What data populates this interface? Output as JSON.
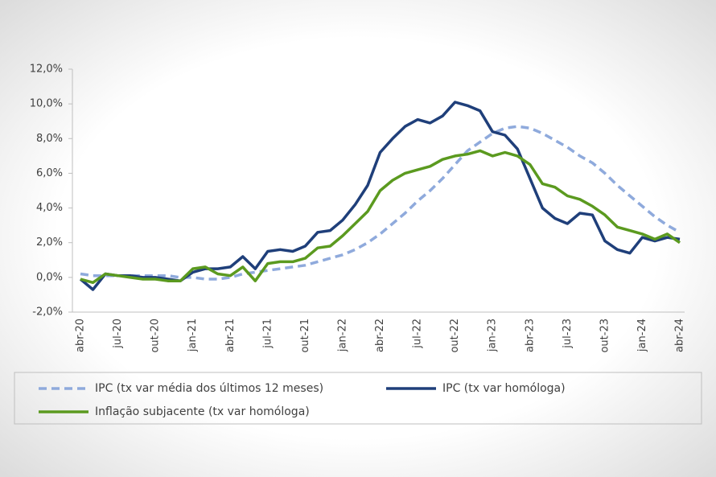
{
  "chart_data": {
    "type": "line",
    "categories": [
      "abr-20",
      null,
      null,
      "jul-20",
      null,
      null,
      "out-20",
      null,
      null,
      "jan-21",
      null,
      null,
      "abr-21",
      null,
      null,
      "jul-21",
      null,
      null,
      "out-21",
      null,
      null,
      "jan-22",
      null,
      null,
      "abr-22",
      null,
      null,
      "jul-22",
      null,
      null,
      "out-22",
      null,
      null,
      "jan-23",
      null,
      null,
      "abr-23",
      null,
      null,
      "jul-23",
      null,
      null,
      "out-23",
      null,
      null,
      "jan-24",
      null,
      null,
      "abr-24"
    ],
    "series": [
      {
        "name": "IPC (tx var média dos últimos 12 meses)",
        "color": "#8faadc",
        "dashed": true,
        "values": [
          0.2,
          0.1,
          0.1,
          0.1,
          0.1,
          0.1,
          0.1,
          0.1,
          0.0,
          0.0,
          -0.1,
          -0.1,
          0.0,
          0.2,
          0.3,
          0.4,
          0.5,
          0.6,
          0.7,
          0.9,
          1.1,
          1.3,
          1.6,
          2.0,
          2.5,
          3.1,
          3.7,
          4.4,
          5.0,
          5.7,
          6.5,
          7.3,
          7.8,
          8.3,
          8.6,
          8.7,
          8.6,
          8.3,
          7.9,
          7.5,
          7.0,
          6.6,
          6.0,
          5.3,
          4.7,
          4.1,
          3.5,
          3.0,
          2.6
        ]
      },
      {
        "name": "IPC (tx var homóloga)",
        "color": "#1f3f7a",
        "dashed": false,
        "values": [
          -0.1,
          -0.7,
          0.2,
          0.1,
          0.1,
          0.0,
          0.0,
          -0.1,
          -0.2,
          0.3,
          0.5,
          0.5,
          0.6,
          1.2,
          0.5,
          1.5,
          1.6,
          1.5,
          1.8,
          2.6,
          2.7,
          3.3,
          4.2,
          5.3,
          7.2,
          8.0,
          8.7,
          9.1,
          8.9,
          9.3,
          10.1,
          9.9,
          9.6,
          8.4,
          8.2,
          7.4,
          5.7,
          4.0,
          3.4,
          3.1,
          3.7,
          3.6,
          2.1,
          1.6,
          1.4,
          2.3,
          2.1,
          2.3,
          2.2
        ]
      },
      {
        "name": "Inflação subjacente (tx var homóloga)",
        "color": "#5b9a1f",
        "dashed": false,
        "values": [
          -0.1,
          -0.3,
          0.2,
          0.1,
          0.0,
          -0.1,
          -0.1,
          -0.2,
          -0.2,
          0.5,
          0.6,
          0.2,
          0.1,
          0.6,
          -0.2,
          0.8,
          0.9,
          0.9,
          1.1,
          1.7,
          1.8,
          2.4,
          3.1,
          3.8,
          5.0,
          5.6,
          6.0,
          6.2,
          6.4,
          6.8,
          7.0,
          7.1,
          7.3,
          7.0,
          7.2,
          7.0,
          6.5,
          5.4,
          5.2,
          4.7,
          4.5,
          4.1,
          3.6,
          2.9,
          2.7,
          2.5,
          2.2,
          2.5,
          2.0
        ]
      }
    ],
    "ylim": [
      -2,
      12
    ],
    "yticks": [
      {
        "value": -2,
        "label": "-2,0%"
      },
      {
        "value": 0,
        "label": "0,0%"
      },
      {
        "value": 2,
        "label": "2,0%"
      },
      {
        "value": 4,
        "label": "4,0%"
      },
      {
        "value": 6,
        "label": "6,0%"
      },
      {
        "value": 8,
        "label": "8,0%"
      },
      {
        "value": 10,
        "label": "10,0%"
      },
      {
        "value": 12,
        "label": "12,0%"
      }
    ],
    "grid": false
  }
}
